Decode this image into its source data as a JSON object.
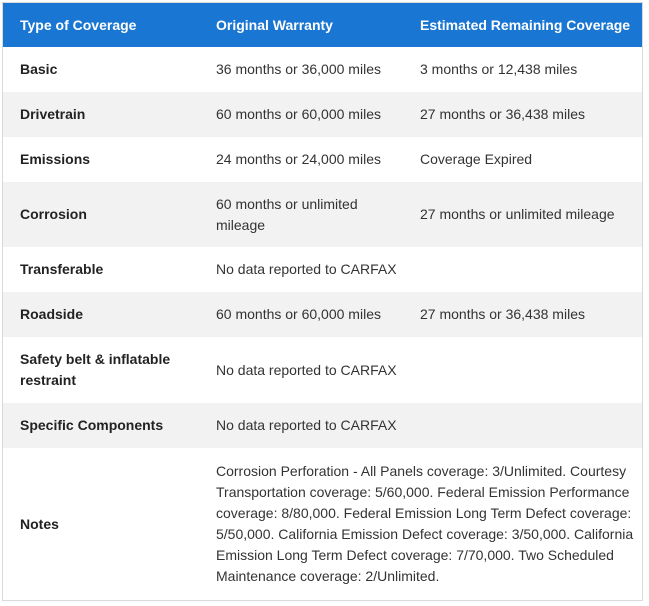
{
  "headers": {
    "col1": "Type of Coverage",
    "col2": "Original Warranty",
    "col3": "Estimated Remaining Coverage"
  },
  "rows": [
    {
      "name": "Basic",
      "original": "36 months or 36,000 miles",
      "remaining": "3 months or 12,438 miles"
    },
    {
      "name": "Drivetrain",
      "original": "60 months or 60,000 miles",
      "remaining": "27 months or 36,438 miles"
    },
    {
      "name": "Emissions",
      "original": "24 months or 24,000 miles",
      "remaining": "Coverage Expired"
    },
    {
      "name": "Corrosion",
      "original": "60 months or unlimited mileage",
      "remaining": "27 months or unlimited mileage"
    },
    {
      "name": "Transferable",
      "original": "No data reported to CARFAX",
      "remaining": ""
    },
    {
      "name": "Roadside",
      "original": "60 months or 60,000 miles",
      "remaining": "27 months or 36,438 miles"
    },
    {
      "name": "Safety belt & inflatable restraint",
      "original": "No data reported to CARFAX",
      "remaining": ""
    },
    {
      "name": "Specific Components",
      "original": "No data reported to CARFAX",
      "remaining": ""
    },
    {
      "name": "Notes",
      "original": "Corrosion Perforation - All Panels coverage: 3/Unlimited. Courtesy Transportation coverage: 5/60,000. Federal Emission Performance coverage: 8/80,000. Federal Emission Long Term Defect coverage: 5/50,000. California Emission Defect coverage: 3/50,000. California Emission Long Term Defect coverage: 7/70,000. Two Scheduled Maintenance coverage: 2/Unlimited.",
      "remaining": ""
    }
  ]
}
